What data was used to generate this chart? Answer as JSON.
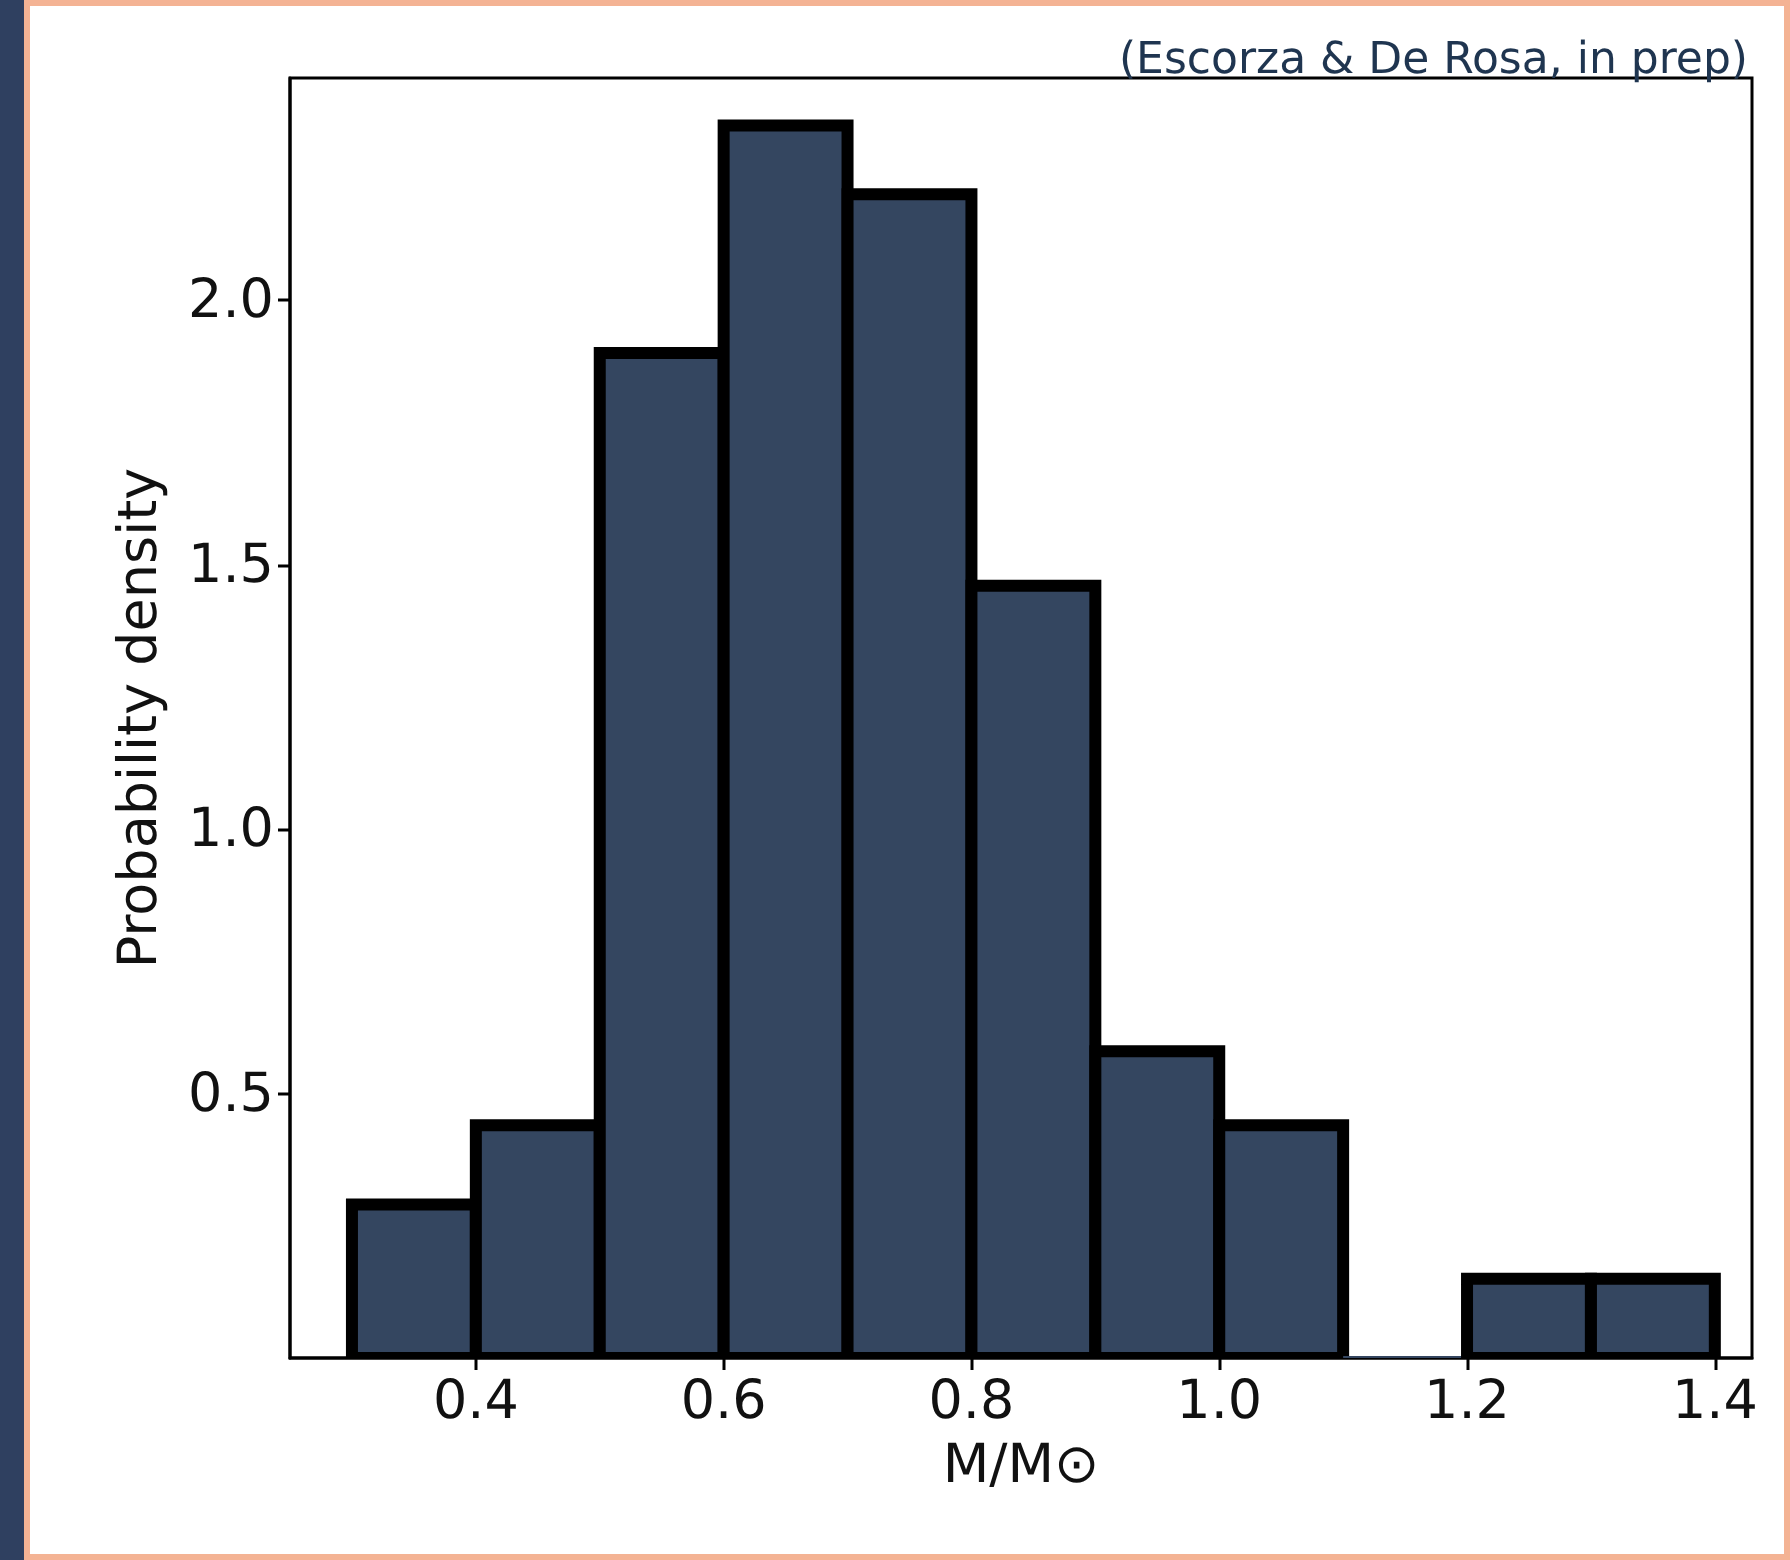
{
  "chart_data": {
    "type": "histogram",
    "xlabel": "M/M⊙",
    "ylabel": "Probability density",
    "annotations": [
      "(Escorza & De Rosa, in prep)"
    ],
    "bins": [
      0.3,
      0.4,
      0.5,
      0.6,
      0.7,
      0.8,
      0.9,
      1.0,
      1.1,
      1.2,
      1.3,
      1.4
    ],
    "values": [
      0.29,
      0.44,
      1.9,
      2.33,
      2.2,
      1.46,
      0.58,
      0.44,
      0,
      0.15,
      0.15
    ],
    "color": "#344660",
    "xlim": [
      0.25,
      1.43
    ],
    "xticks": [
      0.4,
      0.6,
      0.8,
      {
        "value": 1,
        "label": "1.0"
      },
      1.2,
      1.4
    ],
    "ylim": [
      0,
      2.42
    ],
    "yticks": [
      0.5,
      {
        "value": 1,
        "label": "1.0"
      },
      1.5,
      {
        "value": 2,
        "label": "2.0"
      }
    ],
    "grid": false
  }
}
